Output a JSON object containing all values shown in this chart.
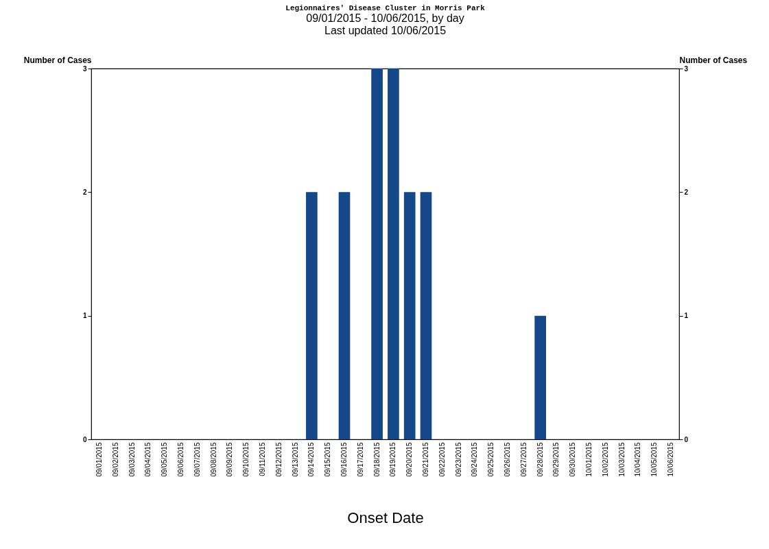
{
  "chart_data": {
    "type": "bar",
    "title": "Legionnaires' Disease Cluster in Morris Park",
    "subtitle": "09/01/2015 - 10/06/2015, by day\nLast updated 10/06/2015",
    "xlabel": "Onset Date",
    "ylabel": "Number of Cases",
    "y2label": "Number of Cases",
    "categories": [
      "09/01/2015",
      "09/02/2015",
      "09/03/2015",
      "09/04/2015",
      "09/05/2015",
      "09/06/2015",
      "09/07/2015",
      "09/08/2015",
      "09/09/2015",
      "09/10/2015",
      "09/11/2015",
      "09/12/2015",
      "09/13/2015",
      "09/14/2015",
      "09/15/2015",
      "09/16/2015",
      "09/17/2015",
      "09/18/2015",
      "09/19/2015",
      "09/20/2015",
      "09/21/2015",
      "09/22/2015",
      "09/23/2015",
      "09/24/2015",
      "09/25/2015",
      "09/26/2015",
      "09/27/2015",
      "09/28/2015",
      "09/29/2015",
      "09/30/2015",
      "10/01/2015",
      "10/02/2015",
      "10/03/2015",
      "10/04/2015",
      "10/05/2015",
      "10/06/2015"
    ],
    "values": [
      0,
      0,
      0,
      0,
      0,
      0,
      0,
      0,
      0,
      0,
      0,
      0,
      0,
      2,
      0,
      2,
      0,
      3,
      3,
      2,
      2,
      0,
      0,
      0,
      0,
      0,
      0,
      1,
      0,
      0,
      0,
      0,
      0,
      0,
      0,
      0
    ],
    "color": "#154889",
    "ylim": [
      0,
      3
    ],
    "yticks": [
      0,
      1,
      2,
      3
    ],
    "y2lim": [
      0,
      3
    ],
    "y2ticks": [
      0,
      1,
      2,
      3
    ],
    "grid": false
  }
}
